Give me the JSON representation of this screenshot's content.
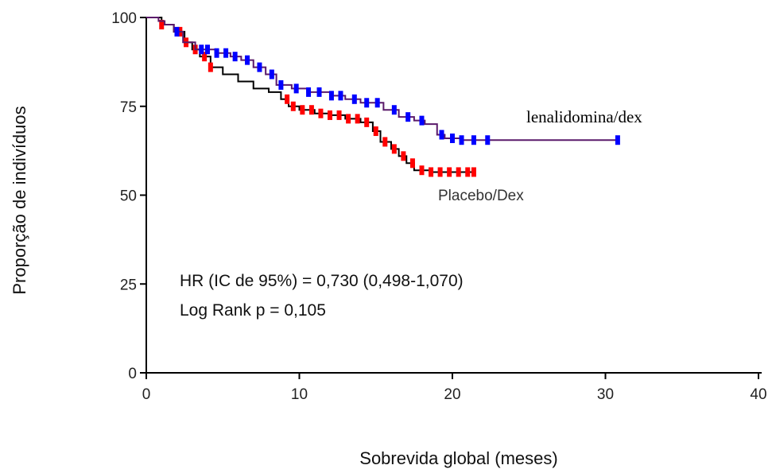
{
  "chart_data": {
    "type": "line",
    "title": "",
    "xlabel": "Sobrevida global (meses)",
    "ylabel": "Proporção de indivíduos",
    "xlim": [
      0,
      40
    ],
    "ylim": [
      0,
      100
    ],
    "x_ticks": [
      "0",
      "10",
      "20",
      "30",
      "40"
    ],
    "y_ticks": [
      "0",
      "25",
      "50",
      "75",
      "100"
    ],
    "grid": false,
    "annotations": [
      "HR (IC de 95%) = 0,730 (0,498-1,070)",
      "Log Rank p = 0,105"
    ],
    "series": [
      {
        "name": "lenalidomina/dex",
        "color": "#0000ff",
        "line_color": "#5a1a6a",
        "points": [
          [
            0,
            100
          ],
          [
            0.8,
            99
          ],
          [
            1.2,
            98
          ],
          [
            1.8,
            96
          ],
          [
            2.4,
            93
          ],
          [
            3.2,
            91
          ],
          [
            4.5,
            90
          ],
          [
            5.5,
            89
          ],
          [
            6.2,
            88
          ],
          [
            7.0,
            86
          ],
          [
            7.8,
            84
          ],
          [
            8.5,
            81
          ],
          [
            9.5,
            80
          ],
          [
            10.5,
            79
          ],
          [
            12.0,
            78
          ],
          [
            13.0,
            77
          ],
          [
            14.0,
            76
          ],
          [
            15.5,
            74
          ],
          [
            16.5,
            72
          ],
          [
            17.5,
            71
          ],
          [
            18.2,
            70
          ],
          [
            19.0,
            67
          ],
          [
            19.5,
            66
          ],
          [
            20.5,
            65.5
          ],
          [
            22.5,
            65.5
          ],
          [
            30.8,
            65.5
          ]
        ],
        "censor_x": [
          2.0,
          3.6,
          4.0,
          4.6,
          5.2,
          5.8,
          6.6,
          7.4,
          8.2,
          8.8,
          9.8,
          10.6,
          11.3,
          12.1,
          12.7,
          13.6,
          14.4,
          15.1,
          16.2,
          17.1,
          18.0,
          19.3,
          20.0,
          20.6,
          21.4,
          22.3,
          30.8
        ]
      },
      {
        "name": "Placebo/Dex",
        "color": "#ff0000",
        "line_color": "#000000",
        "points": [
          [
            0,
            100
          ],
          [
            1.0,
            98
          ],
          [
            1.8,
            96
          ],
          [
            2.5,
            93
          ],
          [
            3.0,
            91
          ],
          [
            3.5,
            89
          ],
          [
            4.2,
            86
          ],
          [
            5.0,
            84
          ],
          [
            6.0,
            82
          ],
          [
            7.0,
            80
          ],
          [
            8.0,
            79
          ],
          [
            8.8,
            77
          ],
          [
            9.3,
            75
          ],
          [
            10.0,
            74
          ],
          [
            11.0,
            73
          ],
          [
            12.0,
            72.5
          ],
          [
            13.0,
            71.5
          ],
          [
            14.0,
            70.5
          ],
          [
            14.8,
            68
          ],
          [
            15.3,
            65
          ],
          [
            16.0,
            63
          ],
          [
            16.5,
            61
          ],
          [
            17.0,
            59
          ],
          [
            17.5,
            57
          ],
          [
            18.5,
            56.5
          ],
          [
            21.4,
            56.5
          ]
        ],
        "censor_x": [
          1.0,
          2.2,
          2.6,
          3.2,
          3.8,
          4.2,
          9.2,
          9.6,
          10.2,
          10.8,
          11.4,
          12.0,
          12.6,
          13.2,
          13.8,
          14.4,
          15.0,
          15.6,
          16.2,
          16.8,
          17.4,
          18.0,
          18.6,
          19.2,
          19.8,
          20.4,
          21.0,
          21.4
        ]
      }
    ]
  }
}
